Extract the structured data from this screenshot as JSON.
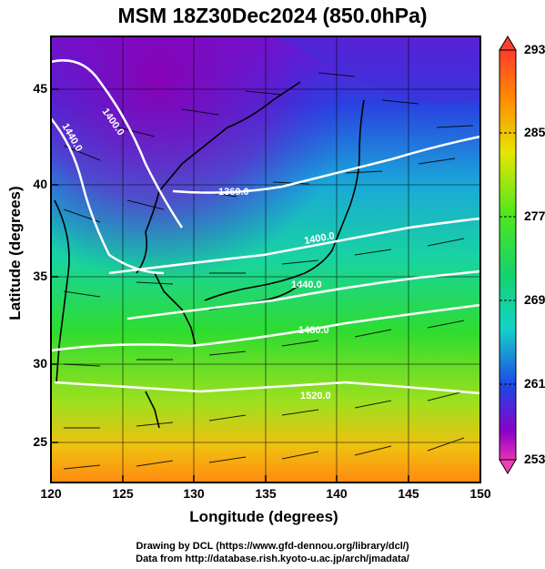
{
  "title": "MSM 18Z30Dec2024 (850.0hPa)",
  "axes": {
    "xlabel": "Longitude (degrees)",
    "ylabel": "Latitude  (degrees)",
    "xticks": [
      "120",
      "125",
      "130",
      "135",
      "140",
      "145",
      "150"
    ],
    "yticks": [
      "45",
      "40",
      "35",
      "30",
      "25"
    ]
  },
  "colorbar": {
    "labels": [
      "293",
      "285",
      "277",
      "269",
      "261",
      "253"
    ],
    "min": 253,
    "max": 293
  },
  "contours": [
    "1400.0",
    "1440.0",
    "1360.0",
    "1400.0",
    "1440.0",
    "1480.0",
    "1520.0"
  ],
  "credits": {
    "line1": "Drawing by DCL (https://www.gfd-dennou.org/library/dcl/)",
    "line2": "Data from http://database.rish.kyoto-u.ac.jp/arch/jmadata/"
  },
  "colors": {
    "cold": "#9b00c8",
    "cool": "#1e50e6",
    "mid": "#14c8aa",
    "warm": "#32dc1e",
    "hot": "#ff8c00"
  }
}
